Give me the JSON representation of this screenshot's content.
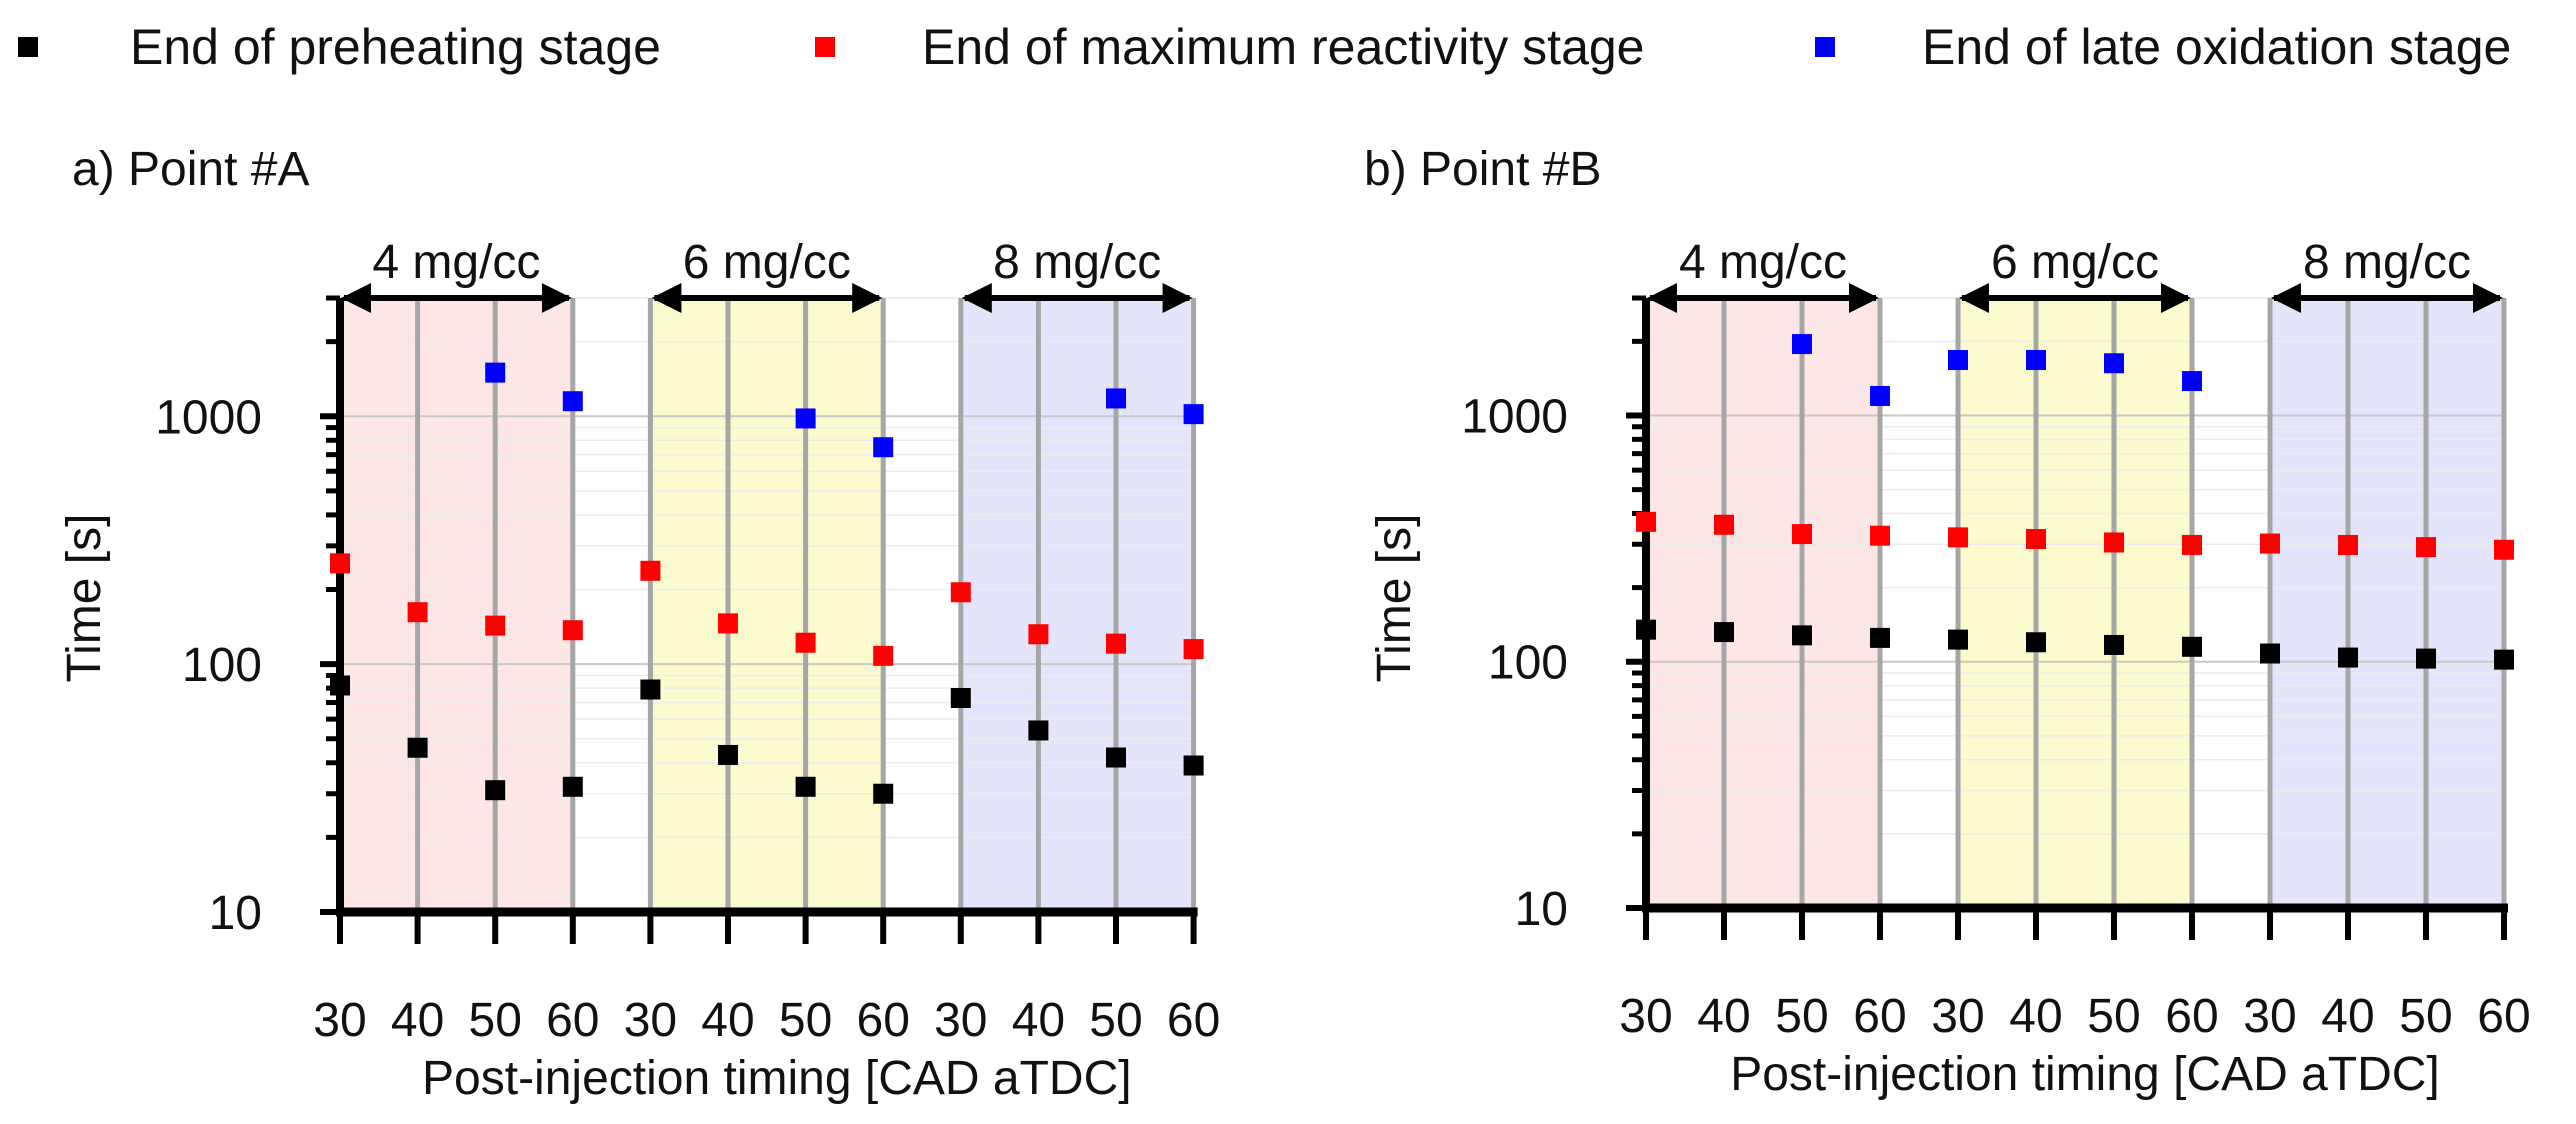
{
  "chart_data": {
    "type": "scatter",
    "y_scale": "log",
    "legend": {
      "position": "top",
      "items": [
        {
          "series": "preheating",
          "label": "End of preheating stage",
          "color": "#000000"
        },
        {
          "series": "max_reactivity",
          "label": "End of maximum reactivity stage",
          "color": "#ff0000"
        },
        {
          "series": "late_oxidation",
          "label": "End of late oxidation stage",
          "color": "#0000ff"
        }
      ]
    },
    "panels": [
      {
        "id": "A",
        "title": "a) Point #A",
        "xlabel": "Post-injection timing [CAD aTDC]",
        "ylabel": "Time [s]",
        "ylim": [
          10,
          3000
        ],
        "yticks": [
          10,
          100,
          1000
        ],
        "ytick_labels": [
          "10",
          "100",
          "1000"
        ],
        "x_tick_labels": [
          "30",
          "40",
          "50",
          "60",
          "30",
          "40",
          "50",
          "60",
          "30",
          "40",
          "50",
          "60"
        ],
        "groups": [
          {
            "label": "4 mg/cc",
            "fill": "#fde6e6"
          },
          {
            "label": "6 mg/cc",
            "fill": "#fbfbcf"
          },
          {
            "label": "8 mg/cc",
            "fill": "#e4e4fa"
          }
        ],
        "series": [
          {
            "name": "preheating",
            "color": "#000000",
            "values": [
              82,
              46,
              31,
              32,
              79,
              43,
              32,
              30,
              73,
              54,
              42,
              39
            ]
          },
          {
            "name": "max_reactivity",
            "color": "#ff0000",
            "values": [
              255,
              162,
              143,
              137,
              238,
              146,
              122,
              108,
              195,
              132,
              121,
              115
            ]
          },
          {
            "name": "late_oxidation",
            "color": "#0000ff",
            "values": [
              null,
              null,
              1500,
              1150,
              null,
              null,
              980,
              750,
              null,
              null,
              1180,
              1020
            ]
          }
        ]
      },
      {
        "id": "B",
        "title": "b) Point #B",
        "xlabel": "Post-injection timing [CAD aTDC]",
        "ylabel": "Time [s]",
        "ylim": [
          10,
          3000
        ],
        "yticks": [
          10,
          100,
          1000
        ],
        "ytick_labels": [
          "10",
          "100",
          "1000"
        ],
        "x_tick_labels": [
          "30",
          "40",
          "50",
          "60",
          "30",
          "40",
          "50",
          "60",
          "30",
          "40",
          "50",
          "60"
        ],
        "groups": [
          {
            "label": "4 mg/cc",
            "fill": "#fde6e6"
          },
          {
            "label": "6 mg/cc",
            "fill": "#fbfbcf"
          },
          {
            "label": "8 mg/cc",
            "fill": "#e4e4fa"
          }
        ],
        "series": [
          {
            "name": "preheating",
            "color": "#000000",
            "values": [
              135,
              132,
              128,
              125,
              123,
              120,
              117,
              115,
              108,
              104,
              103,
              102
            ]
          },
          {
            "name": "max_reactivity",
            "color": "#ff0000",
            "values": [
              370,
              360,
              330,
              325,
              320,
              315,
              305,
              298,
              302,
              298,
              292,
              285
            ]
          },
          {
            "name": "late_oxidation",
            "color": "#0000ff",
            "values": [
              null,
              null,
              1950,
              1200,
              1680,
              1680,
              1630,
              1380,
              null,
              null,
              null,
              null
            ]
          }
        ]
      }
    ]
  }
}
